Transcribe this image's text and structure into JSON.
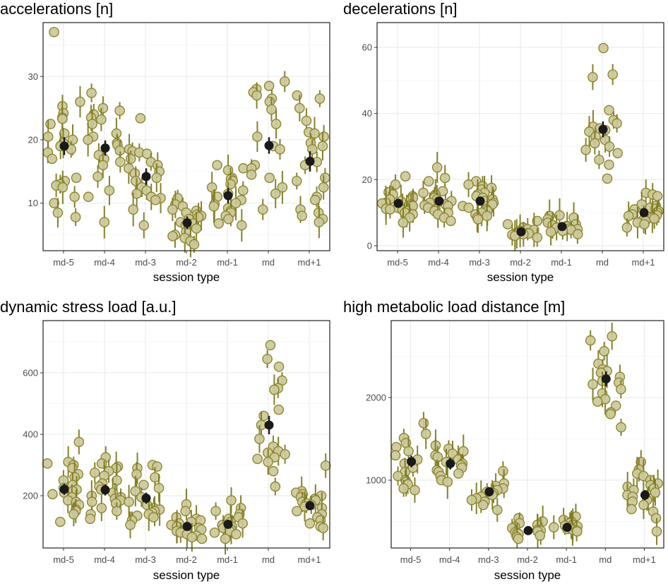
{
  "colors": {
    "point_fill": "#cdc99a",
    "point_stroke": "#8b8631",
    "errorbar": "#7e7a1e",
    "mean": "#1a1a1a"
  },
  "chart_data": [
    {
      "type": "scatter",
      "title": "accelerations [n]",
      "xlabel": "session type",
      "ylabel": "",
      "categories": [
        "md-5",
        "md-4",
        "md-3",
        "md-2",
        "md-1",
        "md",
        "md+1"
      ],
      "ylim": [
        2.5,
        38.5
      ],
      "yticks": [
        10,
        20,
        30
      ],
      "means": [
        19,
        18.7,
        14.2,
        6.9,
        11.2,
        19.1,
        16.6
      ],
      "mean_errors": [
        1.4,
        1.2,
        1.3,
        1.0,
        1.2,
        1.3,
        1.6
      ],
      "points": [
        [
          37,
          26,
          25.3,
          24.2,
          23.5,
          23.3,
          22.5,
          21,
          20.5,
          20,
          19.5,
          19,
          18.5,
          18,
          17,
          14,
          13.5,
          13,
          12.8,
          12.5,
          11,
          10,
          8.5,
          7.8
        ],
        [
          27.4,
          25,
          24.6,
          24,
          23.5,
          23.2,
          22.5,
          21,
          20.5,
          20,
          19.5,
          19.2,
          18.3,
          17.6,
          17,
          16.5,
          16,
          14.2,
          12,
          11,
          7
        ],
        [
          23.4,
          18.5,
          18.2,
          18,
          17.8,
          17,
          16.5,
          16,
          15.5,
          15,
          14.7,
          14,
          13.5,
          12.5,
          12,
          11.5,
          11,
          10.8,
          10.5,
          9,
          6.5
        ],
        [
          10.8,
          9.8,
          9.5,
          9,
          8.8,
          8.5,
          8.2,
          8,
          7.8,
          7.5,
          7,
          6.8,
          6.5,
          6,
          5.5,
          5,
          4.8,
          4.5,
          4,
          3.5
        ],
        [
          16,
          15.5,
          15.2,
          14,
          13.8,
          13.5,
          13,
          12.5,
          12,
          11.5,
          11,
          10.5,
          10,
          9.8,
          9.5,
          9.2,
          8.8,
          8.5,
          8,
          7.5,
          6.8,
          6.5
        ],
        [
          29.2,
          28.5,
          28,
          27.5,
          27,
          26.5,
          26,
          24.8,
          22.5,
          20.5,
          19,
          18.5,
          16,
          15.5,
          14.5,
          14,
          12.5,
          11.5,
          9
        ],
        [
          27,
          26.5,
          25,
          23,
          21.2,
          21,
          20.5,
          19.5,
          19,
          18.5,
          16.5,
          16,
          14,
          13.5,
          12.5,
          11,
          10.5,
          9,
          8.5,
          8,
          7.5,
          7
        ]
      ]
    },
    {
      "type": "scatter",
      "title": "decelerations [n]",
      "xlabel": "session type",
      "ylabel": "",
      "categories": [
        "md-5",
        "md-4",
        "md-3",
        "md-2",
        "md-1",
        "md",
        "md+1"
      ],
      "ylim": [
        -1.5,
        67.5
      ],
      "yticks": [
        0,
        20,
        40,
        60
      ],
      "means": [
        12.8,
        13.5,
        13.5,
        4.2,
        5.8,
        35.2,
        10
      ],
      "mean_errors": [
        1.1,
        1.1,
        1.2,
        0.5,
        0.6,
        2.4,
        1.0
      ],
      "points": [
        [
          21,
          18.5,
          16.2,
          15.5,
          15,
          14.5,
          14,
          13.5,
          13,
          12.8,
          12.5,
          12.2,
          12,
          11.8,
          11.5,
          11.2,
          11,
          10.8,
          10.5,
          10,
          9.5,
          8.5,
          7
        ],
        [
          23.7,
          20.5,
          19.5,
          16.5,
          16,
          15.5,
          15,
          14.5,
          14,
          13.5,
          13.3,
          13,
          12.5,
          12.2,
          12,
          11.5,
          11,
          10.5,
          10,
          9.5,
          8.5,
          7.5
        ],
        [
          19.5,
          18.5,
          18,
          17.5,
          17,
          16,
          15.5,
          15,
          14.5,
          14,
          13.5,
          13,
          12.5,
          12,
          11.5,
          11,
          10.5,
          10,
          9.5,
          9,
          8.5,
          8
        ],
        [
          7.5,
          6.5,
          5.5,
          5,
          4.8,
          4.5,
          4.3,
          4,
          3.8,
          3.7,
          3.6,
          3.5,
          3.3,
          3,
          2.5
        ],
        [
          9.2,
          9,
          8.5,
          8,
          7,
          6.5,
          6.2,
          6,
          5.8,
          5.5,
          5.2,
          5,
          4.8,
          4.5,
          4.2,
          3.5
        ],
        [
          59.8,
          51.8,
          51,
          41,
          38,
          37,
          36,
          35.5,
          35,
          34.5,
          33,
          32,
          31,
          30,
          29,
          28,
          26,
          24.5,
          20.3
        ],
        [
          16,
          15.5,
          15,
          12.5,
          12,
          11.5,
          11.2,
          11,
          10.5,
          10,
          9.5,
          9.2,
          9,
          8.5,
          8.2,
          8,
          7.5,
          7,
          6.5,
          5.5
        ]
      ]
    },
    {
      "type": "scatter",
      "title": "dynamic stress load [a.u.]",
      "xlabel": "session type",
      "ylabel": "",
      "categories": [
        "md-5",
        "md-4",
        "md-3",
        "md-2",
        "md-1",
        "md",
        "md+1"
      ],
      "ylim": [
        30,
        770
      ],
      "yticks": [
        200,
        400,
        600
      ],
      "means": [
        221,
        219,
        192,
        100,
        107,
        430,
        168
      ],
      "mean_errors": [
        18,
        18,
        18,
        10,
        12,
        30,
        15
      ],
      "points": [
        [
          375,
          310,
          305,
          300,
          290,
          270,
          260,
          250,
          235,
          225,
          220,
          215,
          210,
          205,
          195,
          185,
          180,
          170,
          155,
          150,
          140,
          115
        ],
        [
          325,
          305,
          295,
          290,
          280,
          275,
          265,
          250,
          240,
          230,
          220,
          210,
          200,
          195,
          190,
          185,
          180,
          175,
          160,
          150,
          140,
          125
        ],
        [
          300,
          295,
          290,
          270,
          260,
          235,
          225,
          215,
          195,
          180,
          170,
          160,
          155,
          150,
          145,
          140,
          135,
          130,
          120,
          105
        ],
        [
          172,
          150,
          130,
          125,
          120,
          115,
          110,
          105,
          100,
          95,
          90,
          85,
          80,
          75,
          70,
          65,
          60
        ],
        [
          185,
          160,
          150,
          140,
          130,
          125,
          115,
          110,
          105,
          100,
          95,
          90,
          85,
          80,
          75,
          60
        ],
        [
          690,
          645,
          620,
          575,
          550,
          545,
          480,
          460,
          430,
          385,
          360,
          345,
          340,
          335,
          325,
          320,
          310,
          280,
          230
        ],
        [
          298,
          215,
          210,
          205,
          200,
          195,
          190,
          185,
          180,
          175,
          170,
          165,
          160,
          150,
          140,
          130,
          120,
          110,
          100,
          95
        ]
      ]
    },
    {
      "type": "scatter",
      "title": "high metabolic load distance [m]",
      "xlabel": "session type",
      "ylabel": "",
      "categories": [
        "md-5",
        "md-4",
        "md-3",
        "md-2",
        "md-1",
        "md",
        "md+1"
      ],
      "ylim": [
        180,
        2930
      ],
      "yticks": [
        1000,
        2000
      ],
      "means": [
        1225,
        1200,
        860,
        390,
        430,
        2225,
        820
      ],
      "mean_errors": [
        70,
        70,
        55,
        30,
        30,
        90,
        60
      ],
      "points": [
        [
          1690,
          1560,
          1510,
          1450,
          1400,
          1350,
          1300,
          1250,
          1200,
          1150,
          1100,
          1050,
          1000,
          980,
          950,
          900,
          880
        ],
        [
          1420,
          1380,
          1350,
          1320,
          1300,
          1280,
          1250,
          1220,
          1200,
          1180,
          1150,
          1120,
          1100,
          1080,
          1050,
          1000,
          980
        ],
        [
          1110,
          960,
          930,
          900,
          880,
          860,
          840,
          820,
          800,
          780,
          760,
          740,
          700,
          640
        ],
        [
          540,
          500,
          480,
          460,
          440,
          420,
          400,
          390,
          380,
          370,
          360,
          350,
          330,
          310,
          290
        ],
        [
          560,
          520,
          500,
          480,
          460,
          450,
          440,
          430,
          420,
          410,
          400,
          390,
          380
        ],
        [
          2740,
          2690,
          2560,
          2410,
          2340,
          2320,
          2300,
          2250,
          2200,
          2180,
          2160,
          2100,
          2050,
          1980,
          1950,
          1900,
          1820,
          1800,
          1640
        ],
        [
          1220,
          1130,
          1080,
          1050,
          1000,
          960,
          940,
          920,
          900,
          880,
          850,
          820,
          800,
          780,
          760,
          740,
          700,
          650,
          620,
          540,
          380
        ]
      ]
    }
  ]
}
